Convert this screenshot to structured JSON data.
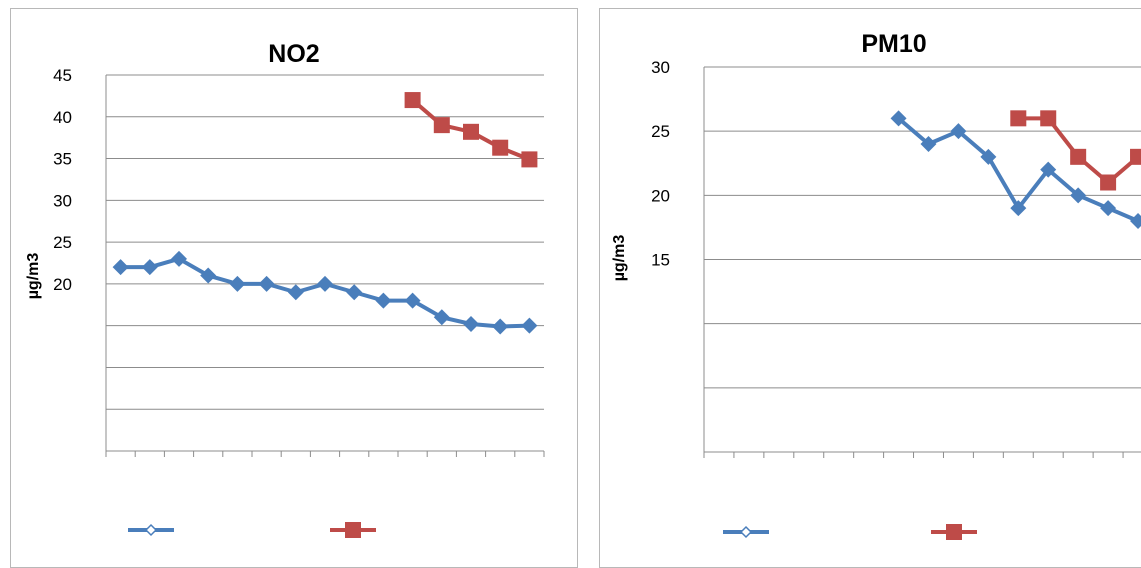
{
  "colors": {
    "series_blue": "#4a7ebb",
    "series_red": "#be4b48",
    "grid": "#8c8c8c"
  },
  "chart_data": [
    {
      "type": "line",
      "title": "NO2",
      "ylabel": "µg/m3",
      "xlabel": "",
      "ylim": [
        0,
        45
      ],
      "y_tick_labels": [
        "45",
        "40",
        "35",
        "30",
        "25",
        "20"
      ],
      "grid": true,
      "legend": "bottom",
      "n_categories": 15,
      "series": [
        {
          "color": "#4a7ebb",
          "marker": "diamond",
          "values": [
            22,
            22,
            23,
            21,
            20,
            20,
            19,
            20,
            19,
            18,
            18,
            16,
            15.2,
            14.9,
            15
          ]
        },
        {
          "color": "#be4b48",
          "marker": "square",
          "values": [
            null,
            null,
            null,
            null,
            null,
            null,
            null,
            null,
            null,
            null,
            42,
            39,
            38.2,
            36.3,
            34.9
          ]
        }
      ]
    },
    {
      "type": "line",
      "title": "PM10",
      "ylabel": "µg/m3",
      "xlabel": "",
      "ylim": [
        0,
        30
      ],
      "y_tick_labels": [
        "30",
        "25",
        "20",
        "15"
      ],
      "grid": true,
      "legend": "bottom",
      "n_categories": 15,
      "series": [
        {
          "color": "#4a7ebb",
          "marker": "diamond",
          "values": [
            null,
            null,
            null,
            null,
            null,
            null,
            26,
            24,
            25,
            23,
            19,
            22,
            20,
            19,
            18
          ]
        },
        {
          "color": "#be4b48",
          "marker": "square",
          "values": [
            null,
            null,
            null,
            null,
            null,
            null,
            null,
            null,
            null,
            null,
            26,
            26,
            23,
            21,
            23
          ]
        }
      ]
    }
  ]
}
